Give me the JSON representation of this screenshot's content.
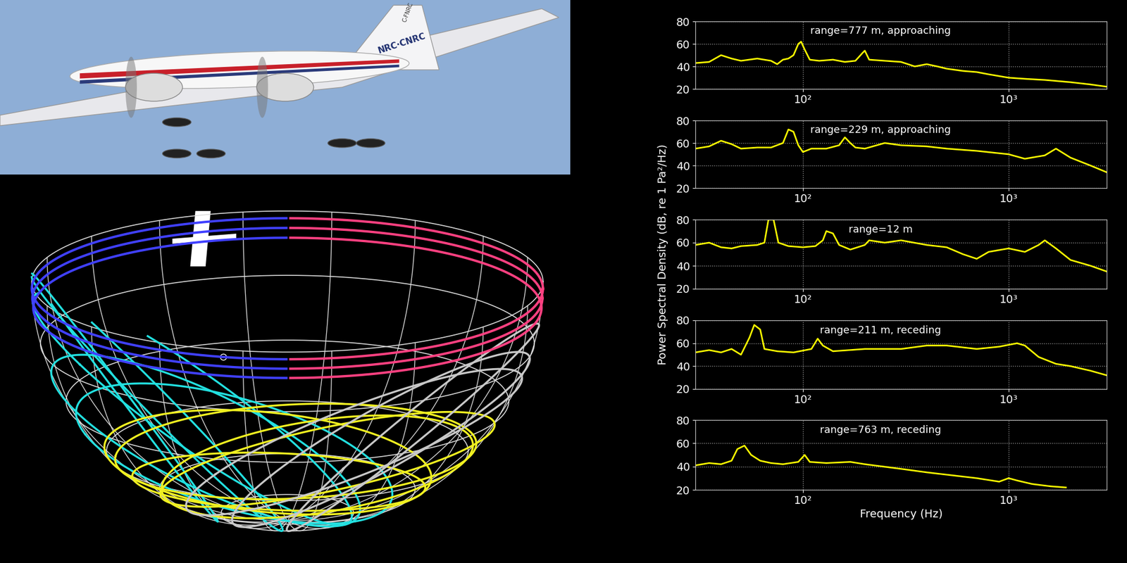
{
  "photo": {
    "tail_text": "NRC·CNRC",
    "registration": "C-FNRC"
  },
  "chart_data": [
    {
      "type": "line",
      "annotation": "range=777 m, approaching",
      "color": "#ffff00",
      "log": "x",
      "grid": true,
      "xlim": [
        30,
        3000
      ],
      "ylim": [
        20,
        80
      ],
      "xticks": [
        {
          "value": 100,
          "label": "10²"
        },
        {
          "value": 1000,
          "label": "10³"
        }
      ],
      "yticks": [
        20,
        40,
        60,
        80
      ],
      "x": [
        30,
        35,
        40,
        45,
        50,
        60,
        70,
        75,
        80,
        85,
        90,
        95,
        98,
        102,
        108,
        120,
        140,
        160,
        180,
        195,
        200,
        210,
        250,
        300,
        350,
        400,
        450,
        500,
        600,
        700,
        800,
        1000,
        1200,
        1500,
        2000,
        2500,
        3000
      ],
      "values": [
        43,
        44,
        50,
        47,
        45,
        47,
        45,
        42,
        46,
        47,
        50,
        60,
        62,
        55,
        46,
        45,
        46,
        44,
        45,
        52,
        54,
        46,
        45,
        44,
        40,
        42,
        40,
        38,
        36,
        35,
        33,
        30,
        29,
        28,
        26,
        24,
        22
      ]
    },
    {
      "type": "line",
      "annotation": "range=229 m, approaching",
      "color": "#ffff00",
      "log": "x",
      "grid": true,
      "xlim": [
        30,
        3000
      ],
      "ylim": [
        20,
        80
      ],
      "xticks": [
        {
          "value": 100,
          "label": "10²"
        },
        {
          "value": 1000,
          "label": "10³"
        }
      ],
      "yticks": [
        20,
        40,
        60,
        80
      ],
      "x": [
        30,
        35,
        40,
        45,
        50,
        60,
        70,
        80,
        85,
        90,
        95,
        100,
        110,
        130,
        150,
        160,
        170,
        180,
        200,
        250,
        300,
        400,
        500,
        700,
        1000,
        1200,
        1500,
        1700,
        2000,
        2500,
        3000
      ],
      "values": [
        55,
        57,
        62,
        59,
        55,
        56,
        56,
        60,
        72,
        70,
        58,
        52,
        55,
        55,
        58,
        65,
        60,
        56,
        55,
        60,
        58,
        57,
        55,
        53,
        50,
        46,
        49,
        55,
        47,
        40,
        34
      ]
    },
    {
      "type": "line",
      "annotation": "range=12 m",
      "color": "#ffff00",
      "log": "x",
      "grid": true,
      "y_label": "Power Spectral Density (dB, re 1 Pa²/Hz)",
      "xlim": [
        30,
        3000
      ],
      "ylim": [
        20,
        80
      ],
      "xticks": [
        {
          "value": 100,
          "label": "10²"
        },
        {
          "value": 1000,
          "label": "10³"
        }
      ],
      "yticks": [
        20,
        40,
        60,
        80
      ],
      "x": [
        30,
        35,
        40,
        45,
        50,
        60,
        65,
        68,
        72,
        76,
        85,
        100,
        115,
        125,
        130,
        140,
        150,
        170,
        200,
        210,
        250,
        300,
        400,
        500,
        600,
        700,
        800,
        1000,
        1200,
        1400,
        1500,
        1700,
        2000,
        2500,
        3000
      ],
      "values": [
        58,
        60,
        56,
        55,
        57,
        58,
        60,
        80,
        80,
        60,
        57,
        56,
        57,
        62,
        70,
        68,
        58,
        54,
        58,
        62,
        60,
        62,
        58,
        56,
        50,
        46,
        52,
        55,
        52,
        58,
        62,
        55,
        45,
        40,
        35
      ]
    },
    {
      "type": "line",
      "annotation": "range=211 m, receding",
      "color": "#ffff00",
      "log": "x",
      "grid": true,
      "xlim": [
        30,
        3000
      ],
      "ylim": [
        20,
        80
      ],
      "xticks": [
        {
          "value": 100,
          "label": "10²"
        },
        {
          "value": 1000,
          "label": "10³"
        }
      ],
      "yticks": [
        20,
        40,
        60,
        80
      ],
      "x": [
        30,
        35,
        40,
        45,
        50,
        55,
        58,
        62,
        65,
        75,
        90,
        110,
        118,
        125,
        140,
        200,
        300,
        400,
        500,
        700,
        900,
        1100,
        1200,
        1400,
        1700,
        2000,
        2500,
        3000
      ],
      "values": [
        52,
        54,
        52,
        55,
        50,
        65,
        76,
        72,
        55,
        53,
        52,
        55,
        64,
        58,
        53,
        55,
        55,
        58,
        58,
        55,
        57,
        60,
        58,
        48,
        42,
        40,
        36,
        32
      ]
    },
    {
      "type": "line",
      "annotation": "range=763 m, receding",
      "color": "#ffff00",
      "log": "x",
      "grid": true,
      "x_label": "Frequency (Hz)",
      "xlim": [
        30,
        3000
      ],
      "ylim": [
        20,
        80
      ],
      "xticks": [
        {
          "value": 100,
          "label": "10²"
        },
        {
          "value": 1000,
          "label": "10³"
        }
      ],
      "yticks": [
        20,
        40,
        60,
        80
      ],
      "x": [
        30,
        35,
        40,
        45,
        48,
        52,
        56,
        62,
        70,
        80,
        95,
        102,
        108,
        130,
        170,
        200,
        300,
        400,
        500,
        700,
        900,
        1000,
        1100,
        1300,
        1600,
        1900
      ],
      "values": [
        41,
        43,
        42,
        45,
        55,
        58,
        50,
        45,
        43,
        42,
        44,
        50,
        44,
        43,
        44,
        42,
        38,
        35,
        33,
        30,
        27,
        30,
        28,
        25,
        23,
        22
      ]
    }
  ]
}
